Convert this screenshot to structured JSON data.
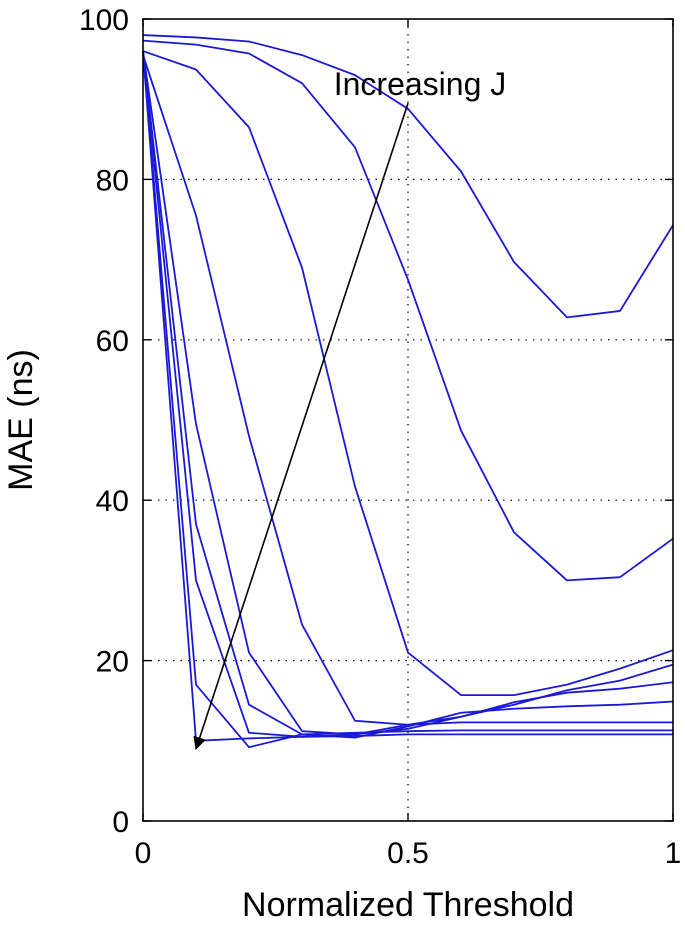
{
  "chart_data": {
    "type": "line",
    "title": "",
    "xlabel": "Normalized Threshold",
    "ylabel": "MAE (ns)",
    "xlim": [
      0,
      1
    ],
    "ylim": [
      0,
      100
    ],
    "x_ticks": [
      0,
      0.5,
      1
    ],
    "x_tick_labels": [
      "0",
      "0.5",
      "1"
    ],
    "y_ticks": [
      0,
      20,
      40,
      60,
      80,
      100
    ],
    "y_tick_labels": [
      "0",
      "20",
      "40",
      "60",
      "80",
      "100"
    ],
    "grid": true,
    "line_color": "#1a1ad6",
    "x": [
      0,
      0.1,
      0.2,
      0.3,
      0.4,
      0.5,
      0.6,
      0.7,
      0.8,
      0.9,
      1.0
    ],
    "series": [
      {
        "values": [
          98.0,
          97.7,
          97.2,
          95.5,
          93.0,
          88.8,
          81.0,
          69.7,
          62.8,
          63.6,
          74.3
        ]
      },
      {
        "values": [
          97.3,
          96.8,
          95.7,
          92.0,
          84.0,
          67.5,
          48.7,
          36.0,
          30.0,
          30.4,
          35.2
        ]
      },
      {
        "values": [
          96.0,
          93.7,
          86.5,
          69.0,
          41.7,
          21.0,
          15.7,
          15.7,
          17.0,
          19.0,
          21.3
        ]
      },
      {
        "values": [
          95.5,
          75.5,
          48.0,
          24.5,
          12.5,
          12.0,
          13.0,
          14.5,
          16.3,
          17.5,
          19.5
        ]
      },
      {
        "values": [
          96.0,
          49.5,
          21.0,
          11.2,
          10.8,
          11.5,
          13.0,
          14.8,
          16.0,
          16.5,
          17.3
        ]
      },
      {
        "values": [
          96.0,
          37.0,
          14.5,
          10.8,
          10.4,
          11.8,
          13.5,
          14.0,
          14.3,
          14.5,
          14.9
        ]
      },
      {
        "values": [
          96.0,
          30.0,
          11.0,
          10.5,
          10.8,
          12.0,
          12.3,
          12.3,
          12.3,
          12.3,
          12.3
        ]
      },
      {
        "values": [
          96.0,
          17.0,
          9.2,
          10.8,
          11.0,
          11.2,
          11.3,
          11.3,
          11.3,
          11.3,
          11.3
        ]
      },
      {
        "values": [
          96.0,
          10.0,
          10.3,
          10.5,
          10.6,
          10.8,
          10.8,
          10.8,
          10.8,
          10.8,
          10.8
        ]
      }
    ],
    "annotations": [
      {
        "text": "Increasing J",
        "arrow_from": [
          0.5,
          89.5
        ],
        "arrow_to": [
          0.1,
          9.0
        ]
      }
    ]
  }
}
